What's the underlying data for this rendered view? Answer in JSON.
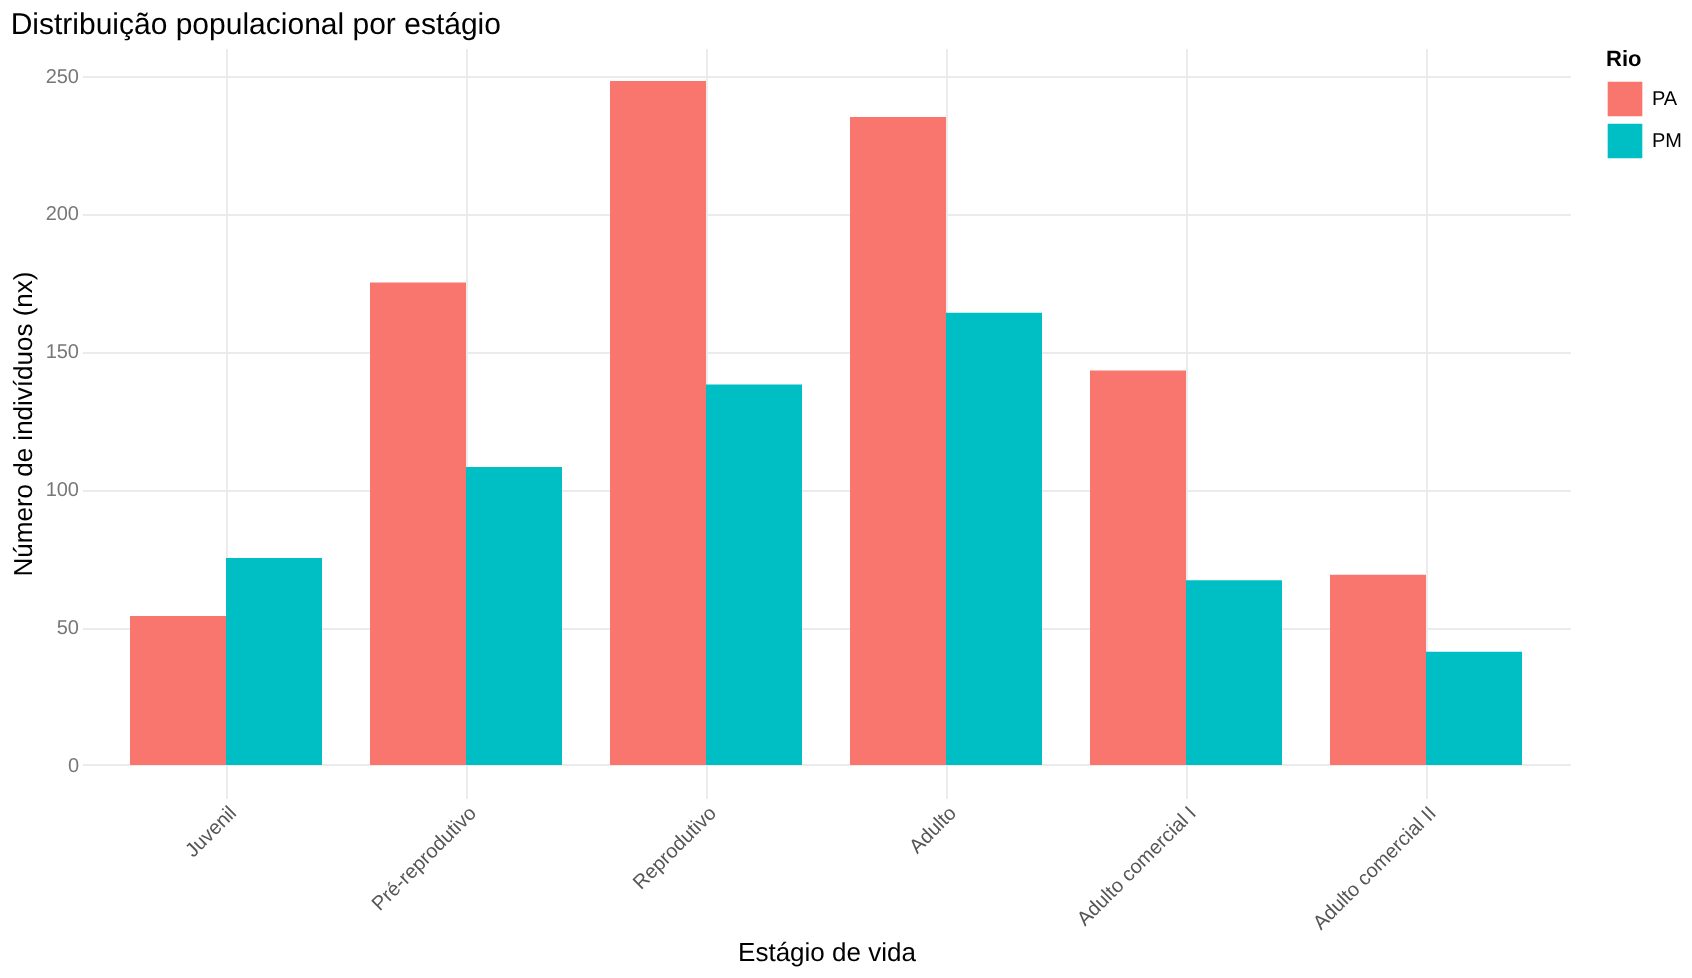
{
  "chart_data": {
    "type": "bar",
    "title": "Distribuição populacional por estágio",
    "xlabel": "Estágio de vida",
    "ylabel": "Número de indivíduos (nx)",
    "legend_title": "Rio",
    "categories": [
      "Juvenil",
      "Pré-reprodutivo",
      "Reprodutivo",
      "Adulto",
      "Adulto comercial I",
      "Adulto comercial II"
    ],
    "series": [
      {
        "name": "PA",
        "color": "#f8766d",
        "values": [
          54,
          175,
          248,
          235,
          143,
          69
        ]
      },
      {
        "name": "PM",
        "color": "#00bfc4",
        "values": [
          75,
          108,
          138,
          164,
          67,
          41
        ]
      }
    ],
    "ylim": [
      -12,
      260
    ],
    "yticks": [
      0,
      50,
      100,
      150,
      200,
      250
    ],
    "grid": true,
    "legend": "right"
  }
}
